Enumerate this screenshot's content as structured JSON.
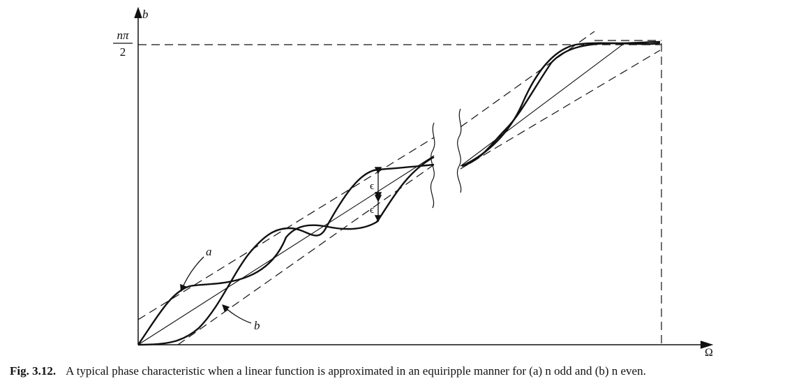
{
  "figure": {
    "y_axis_label": "b",
    "x_axis_label": "Ω",
    "y_max_label_num": "nπ",
    "y_max_label_den": "2",
    "curve_a_label": "a",
    "curve_b_label": "b",
    "epsilon_label_upper": "ϵ",
    "epsilon_label_lower": "ϵ"
  },
  "caption": {
    "number": "Fig. 3.12.",
    "text": "A typical phase characteristic when a linear function is approximated in an equiripple manner for (a) n odd and (b) n even."
  },
  "colors": {
    "ink": "#111111",
    "paper": "#ffffff"
  }
}
